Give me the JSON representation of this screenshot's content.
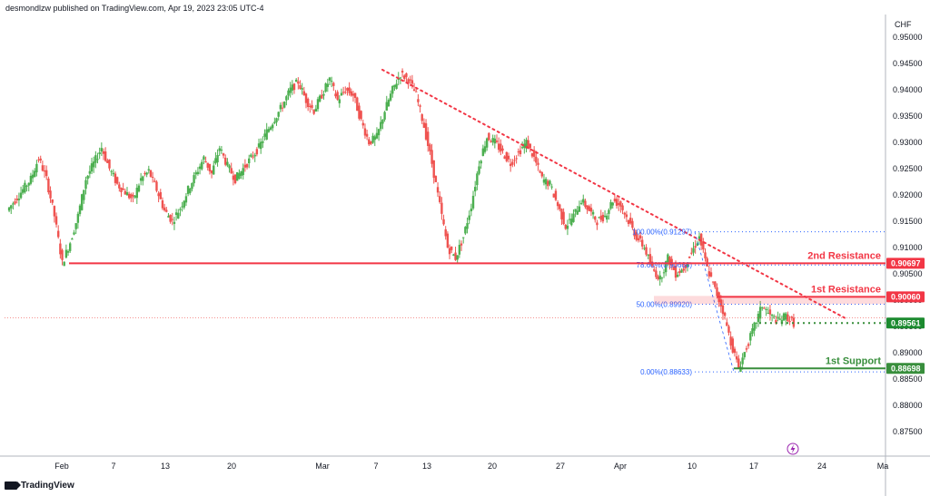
{
  "header": {
    "publisher": "desmondlzw published on TradingView.com, Apr 19, 2023 23:05 UTC-4"
  },
  "currency_label": "CHF",
  "footer": {
    "brand": "TradingView",
    "icon": "tradingview-logo-icon"
  },
  "colors": {
    "resistance": "#f23645",
    "support": "#388e3c",
    "fib": "#2962ff",
    "trendline": "#f23645",
    "up_candle": "#4caf50",
    "down_candle": "#ef5350",
    "price": "#1b8a2f"
  },
  "chart_data": {
    "type": "candlestick",
    "symbol_currency": "CHF",
    "ylim": [
      0.8703,
      0.9543
    ],
    "y_ticks": [
      "0.95000",
      "0.94500",
      "0.94000",
      "0.93500",
      "0.93000",
      "0.92500",
      "0.92000",
      "0.91500",
      "0.91000",
      "0.90500",
      "0.90000",
      "0.89500",
      "0.89000",
      "0.88500",
      "0.88000",
      "0.87500"
    ],
    "x_ticks": [
      "Feb",
      "7",
      "13",
      "20",
      "Mar",
      "7",
      "13",
      "20",
      "27",
      "Apr",
      "10",
      "17",
      "24",
      "Ma"
    ],
    "levels": [
      {
        "name": "2nd Resistance",
        "value": "0.90697",
        "role": "resistance"
      },
      {
        "name": "1st Resistance",
        "value": "0.90060",
        "role": "resistance"
      },
      {
        "name": "",
        "value": "0.89561",
        "role": "price"
      },
      {
        "name": "1st Support",
        "value": "0.88698",
        "role": "support"
      }
    ],
    "fibonacci": [
      {
        "label": "100.00%(0.91297)",
        "value": 0.91297
      },
      {
        "label": "78.60%(0.90666)",
        "value": 0.90666
      },
      {
        "label": "50.00%(0.89920)",
        "value": 0.8992
      },
      {
        "label": "0.00%(0.88633)",
        "value": 0.88633
      }
    ],
    "trendline": {
      "from_close": 0.9438,
      "to_close": 0.8966,
      "style": "dotted"
    },
    "close_path": [
      0.917,
      0.919,
      0.921,
      0.923,
      0.927,
      0.923,
      0.916,
      0.907,
      0.911,
      0.916,
      0.923,
      0.926,
      0.929,
      0.925,
      0.922,
      0.9205,
      0.919,
      0.923,
      0.9245,
      0.921,
      0.917,
      0.915,
      0.9175,
      0.921,
      0.924,
      0.927,
      0.924,
      0.929,
      0.9255,
      0.923,
      0.925,
      0.927,
      0.929,
      0.932,
      0.9345,
      0.937,
      0.94,
      0.9415,
      0.938,
      0.936,
      0.939,
      0.942,
      0.938,
      0.94,
      0.939,
      0.934,
      0.93,
      0.931,
      0.936,
      0.94,
      0.943,
      0.942,
      0.939,
      0.933,
      0.926,
      0.918,
      0.91,
      0.908,
      0.912,
      0.918,
      0.926,
      0.931,
      0.93,
      0.928,
      0.926,
      0.928,
      0.93,
      0.927,
      0.923,
      0.922,
      0.918,
      0.914,
      0.916,
      0.919,
      0.917,
      0.915,
      0.916,
      0.919,
      0.918,
      0.915,
      0.912,
      0.91,
      0.906,
      0.904,
      0.908,
      0.905,
      0.906,
      0.909,
      0.912,
      0.906,
      0.902,
      0.898,
      0.892,
      0.887,
      0.891,
      0.895,
      0.899,
      0.897,
      0.896,
      0.897,
      0.8956
    ]
  }
}
